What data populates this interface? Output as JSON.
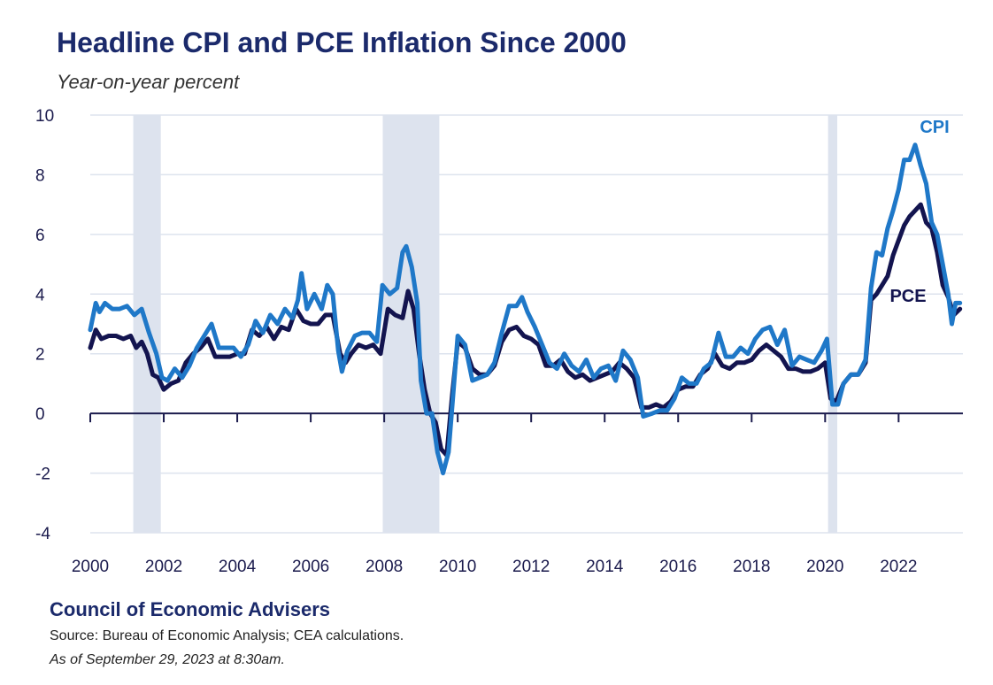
{
  "header": {
    "title": "Headline CPI and PCE Inflation Since 2000",
    "subtitle": "Year-on-year percent"
  },
  "footer": {
    "organization": "Council of Economic Advisers",
    "source": "Source: Bureau of Economic Analysis; CEA calculations.",
    "as_of": "As of September 29, 2023 at 8:30am."
  },
  "colors": {
    "cpi": "#1f78c8",
    "pce": "#13144f",
    "recession": "#dde3ee",
    "grid": "#dde3ee",
    "axis": "#1b1b4d"
  },
  "chart_data": {
    "type": "line",
    "title": "Headline CPI and PCE Inflation Since 2000",
    "subtitle": "Year-on-year percent",
    "xlabel": "",
    "ylabel": "",
    "xlim": [
      2000,
      2023.75
    ],
    "ylim": [
      -4,
      10
    ],
    "x_ticks": [
      2000,
      2002,
      2004,
      2006,
      2008,
      2010,
      2012,
      2014,
      2016,
      2018,
      2020,
      2022
    ],
    "y_ticks": [
      -4,
      -2,
      0,
      2,
      4,
      6,
      8,
      10
    ],
    "grid": true,
    "legend": "direct labels at line ends",
    "recession_shading": [
      {
        "start": 2001.17,
        "end": 2001.92
      },
      {
        "start": 2007.96,
        "end": 2009.5
      },
      {
        "start": 2020.08,
        "end": 2020.33
      }
    ],
    "series": [
      {
        "name": "CPI",
        "x": [
          2000.0,
          2000.15,
          2000.25,
          2000.4,
          2000.6,
          2000.8,
          2001.0,
          2001.2,
          2001.4,
          2001.6,
          2001.8,
          2001.95,
          2002.1,
          2002.3,
          2002.5,
          2002.7,
          2002.9,
          2003.1,
          2003.3,
          2003.5,
          2003.7,
          2003.9,
          2004.1,
          2004.3,
          2004.5,
          2004.7,
          2004.9,
          2005.1,
          2005.3,
          2005.5,
          2005.65,
          2005.75,
          2005.9,
          2006.1,
          2006.3,
          2006.45,
          2006.6,
          2006.75,
          2006.85,
          2007.0,
          2007.2,
          2007.4,
          2007.6,
          2007.8,
          2007.95,
          2008.15,
          2008.35,
          2008.5,
          2008.6,
          2008.75,
          2008.9,
          2009.0,
          2009.15,
          2009.3,
          2009.45,
          2009.6,
          2009.75,
          2009.9,
          2010.0,
          2010.2,
          2010.4,
          2010.6,
          2010.8,
          2011.0,
          2011.2,
          2011.4,
          2011.6,
          2011.75,
          2011.9,
          2012.1,
          2012.3,
          2012.5,
          2012.7,
          2012.9,
          2013.1,
          2013.3,
          2013.5,
          2013.7,
          2013.9,
          2014.1,
          2014.3,
          2014.5,
          2014.7,
          2014.9,
          2015.05,
          2015.3,
          2015.5,
          2015.7,
          2015.9,
          2016.1,
          2016.3,
          2016.5,
          2016.7,
          2016.9,
          2017.1,
          2017.3,
          2017.5,
          2017.7,
          2017.9,
          2018.1,
          2018.3,
          2018.5,
          2018.7,
          2018.9,
          2019.1,
          2019.3,
          2019.5,
          2019.7,
          2019.9,
          2020.05,
          2020.2,
          2020.35,
          2020.5,
          2020.7,
          2020.9,
          2021.1,
          2021.25,
          2021.4,
          2021.55,
          2021.7,
          2021.85,
          2022.0,
          2022.15,
          2022.3,
          2022.45,
          2022.6,
          2022.75,
          2022.9,
          2023.05,
          2023.2,
          2023.35,
          2023.45,
          2023.55,
          2023.67
        ],
        "values": [
          2.8,
          3.7,
          3.4,
          3.7,
          3.5,
          3.5,
          3.6,
          3.3,
          3.5,
          2.7,
          2.0,
          1.2,
          1.1,
          1.5,
          1.2,
          1.6,
          2.2,
          2.6,
          3.0,
          2.2,
          2.2,
          2.2,
          1.9,
          2.3,
          3.1,
          2.7,
          3.3,
          3.0,
          3.5,
          3.2,
          3.8,
          4.7,
          3.5,
          4.0,
          3.5,
          4.3,
          4.0,
          2.1,
          1.4,
          2.1,
          2.6,
          2.7,
          2.7,
          2.4,
          4.3,
          4.0,
          4.2,
          5.4,
          5.6,
          4.9,
          3.7,
          1.1,
          0.0,
          0.0,
          -1.3,
          -2.0,
          -1.3,
          1.0,
          2.6,
          2.3,
          1.1,
          1.2,
          1.3,
          1.7,
          2.7,
          3.6,
          3.6,
          3.9,
          3.4,
          2.9,
          2.3,
          1.7,
          1.5,
          2.0,
          1.6,
          1.4,
          1.8,
          1.2,
          1.5,
          1.6,
          1.1,
          2.1,
          1.8,
          1.2,
          -0.1,
          0.0,
          0.1,
          0.1,
          0.5,
          1.2,
          1.0,
          1.0,
          1.5,
          1.7,
          2.7,
          1.9,
          1.9,
          2.2,
          2.0,
          2.5,
          2.8,
          2.9,
          2.3,
          2.8,
          1.6,
          1.9,
          1.8,
          1.7,
          2.1,
          2.5,
          0.3,
          0.3,
          1.0,
          1.3,
          1.3,
          1.8,
          4.2,
          5.4,
          5.3,
          6.2,
          6.8,
          7.5,
          8.5,
          8.5,
          9.0,
          8.3,
          7.7,
          6.4,
          6.0,
          5.0,
          4.0,
          3.0,
          3.7,
          3.7
        ]
      },
      {
        "name": "PCE",
        "x": [
          2000.0,
          2000.15,
          2000.3,
          2000.5,
          2000.7,
          2000.9,
          2001.1,
          2001.25,
          2001.4,
          2001.55,
          2001.7,
          2001.85,
          2002.0,
          2002.2,
          2002.4,
          2002.6,
          2002.8,
          2003.0,
          2003.2,
          2003.4,
          2003.6,
          2003.8,
          2004.0,
          2004.2,
          2004.4,
          2004.6,
          2004.8,
          2005.0,
          2005.2,
          2005.4,
          2005.6,
          2005.8,
          2006.0,
          2006.2,
          2006.4,
          2006.6,
          2006.8,
          2006.95,
          2007.1,
          2007.3,
          2007.5,
          2007.7,
          2007.9,
          2008.1,
          2008.3,
          2008.5,
          2008.65,
          2008.8,
          2008.95,
          2009.1,
          2009.25,
          2009.4,
          2009.55,
          2009.7,
          2009.85,
          2010.0,
          2010.2,
          2010.4,
          2010.6,
          2010.8,
          2011.0,
          2011.2,
          2011.4,
          2011.6,
          2011.8,
          2012.0,
          2012.2,
          2012.4,
          2012.6,
          2012.8,
          2013.0,
          2013.2,
          2013.4,
          2013.6,
          2013.8,
          2014.0,
          2014.2,
          2014.4,
          2014.6,
          2014.8,
          2015.0,
          2015.2,
          2015.4,
          2015.6,
          2015.8,
          2016.0,
          2016.2,
          2016.4,
          2016.6,
          2016.8,
          2017.0,
          2017.2,
          2017.4,
          2017.6,
          2017.8,
          2018.0,
          2018.2,
          2018.4,
          2018.6,
          2018.8,
          2019.0,
          2019.2,
          2019.4,
          2019.6,
          2019.8,
          2020.0,
          2020.15,
          2020.3,
          2020.5,
          2020.7,
          2020.9,
          2021.1,
          2021.25,
          2021.4,
          2021.55,
          2021.7,
          2021.85,
          2022.0,
          2022.15,
          2022.3,
          2022.45,
          2022.6,
          2022.75,
          2022.9,
          2023.05,
          2023.2,
          2023.35,
          2023.5,
          2023.67
        ],
        "values": [
          2.2,
          2.8,
          2.5,
          2.6,
          2.6,
          2.5,
          2.6,
          2.2,
          2.4,
          2.0,
          1.3,
          1.2,
          0.8,
          1.0,
          1.1,
          1.7,
          2.0,
          2.2,
          2.5,
          1.9,
          1.9,
          1.9,
          2.0,
          2.0,
          2.8,
          2.6,
          2.9,
          2.5,
          2.9,
          2.8,
          3.5,
          3.1,
          3.0,
          3.0,
          3.3,
          3.3,
          2.0,
          1.7,
          2.0,
          2.3,
          2.2,
          2.3,
          2.0,
          3.5,
          3.3,
          3.2,
          4.1,
          3.5,
          2.0,
          0.8,
          0.0,
          -0.3,
          -1.2,
          -1.4,
          0.6,
          2.4,
          2.2,
          1.5,
          1.3,
          1.3,
          1.6,
          2.4,
          2.8,
          2.9,
          2.6,
          2.5,
          2.3,
          1.6,
          1.6,
          1.8,
          1.4,
          1.2,
          1.3,
          1.1,
          1.2,
          1.3,
          1.4,
          1.7,
          1.5,
          1.2,
          0.2,
          0.2,
          0.3,
          0.2,
          0.4,
          0.8,
          0.9,
          0.9,
          1.3,
          1.5,
          2.0,
          1.6,
          1.5,
          1.7,
          1.7,
          1.8,
          2.1,
          2.3,
          2.1,
          1.9,
          1.5,
          1.5,
          1.4,
          1.4,
          1.5,
          1.7,
          0.5,
          0.4,
          1.0,
          1.3,
          1.3,
          1.7,
          3.8,
          4.0,
          4.3,
          4.6,
          5.3,
          5.8,
          6.3,
          6.6,
          6.8,
          7.0,
          6.4,
          6.2,
          5.4,
          4.3,
          3.9,
          3.3,
          3.5
        ]
      }
    ]
  }
}
